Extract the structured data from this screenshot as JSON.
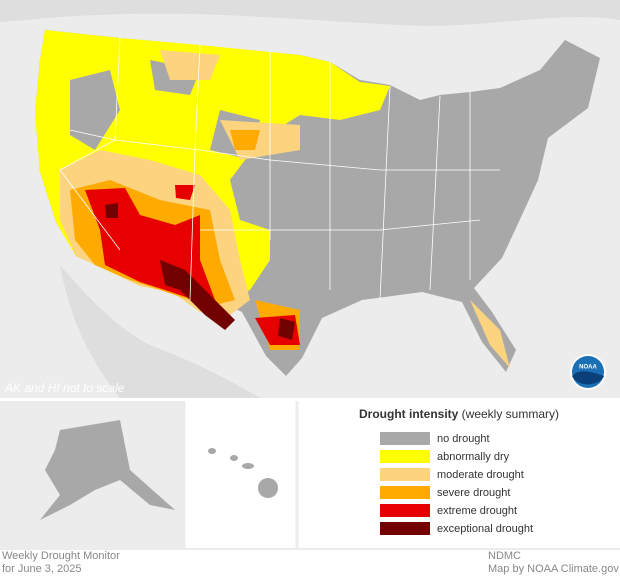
{
  "map_note": "AK and HI not to scale",
  "logo": "NOAA",
  "legend": {
    "title": "Drought intensity",
    "subtitle": "(weekly summary)",
    "items": [
      {
        "label": "no drought",
        "color": "#a8a8a8"
      },
      {
        "label": "abnormally dry",
        "color": "#ffff00"
      },
      {
        "label": "moderate drought",
        "color": "#fcd37f"
      },
      {
        "label": "severe drought",
        "color": "#ffaa00"
      },
      {
        "label": "extreme drought",
        "color": "#e60000"
      },
      {
        "label": "exceptional drought",
        "color": "#730000"
      }
    ]
  },
  "footer": {
    "title": "Weekly Drought Monitor",
    "date": "for June 3, 2025",
    "source": "NDMC",
    "credit": "Map by NOAA Climate.gov"
  }
}
